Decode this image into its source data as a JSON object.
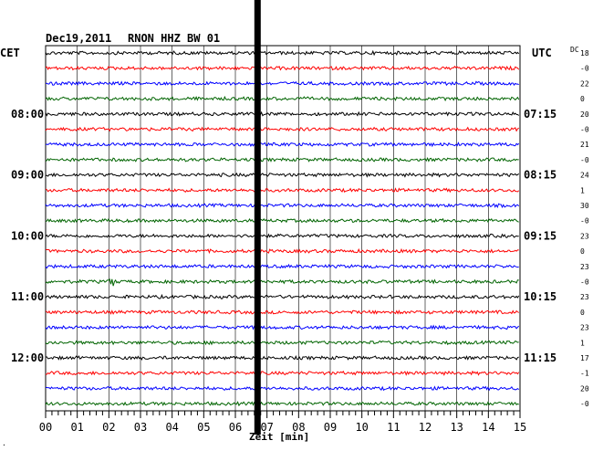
{
  "header": {
    "date": "Dec19,2011",
    "station": "RNON HHZ BW 01",
    "left_zone": "CET",
    "right_zone": "UTC",
    "dc_label": "DC"
  },
  "footer": {
    "xlabel": "Zeit [min]",
    "corner_mark": "."
  },
  "chart_data": {
    "type": "line",
    "title": "Dec19,2011 RNON HHZ BW 01",
    "xlabel": "Zeit [min]",
    "x_range": [
      0,
      15
    ],
    "x_ticks": [
      "00",
      "01",
      "02",
      "03",
      "04",
      "05",
      "06",
      "07",
      "08",
      "09",
      "10",
      "11",
      "12",
      "13",
      "14",
      "15"
    ],
    "grid": true,
    "trace_colors": [
      "#000000",
      "#ff0000",
      "#0000ff",
      "#006400"
    ],
    "left_hour_labels": [
      {
        "trace": 4,
        "label": "08:00"
      },
      {
        "trace": 8,
        "label": "09:00"
      },
      {
        "trace": 12,
        "label": "10:00"
      },
      {
        "trace": 16,
        "label": "11:00"
      },
      {
        "trace": 20,
        "label": "12:00"
      }
    ],
    "right_hour_labels": [
      {
        "trace": 4,
        "label": "07:15"
      },
      {
        "trace": 8,
        "label": "08:15"
      },
      {
        "trace": 12,
        "label": "09:15"
      },
      {
        "trace": 16,
        "label": "10:15"
      },
      {
        "trace": 20,
        "label": "11:15"
      }
    ],
    "dc_offsets": [
      "18",
      "-0",
      "22",
      "0",
      "20",
      "-0",
      "21",
      "-0",
      "24",
      "1",
      "30",
      "-0",
      "23",
      "0",
      "23",
      "-0",
      "23",
      "0",
      "23",
      "1",
      "17",
      "-1",
      "20",
      "-0"
    ],
    "trace_count": 24,
    "event_markers": [
      {
        "trace": 15,
        "minute": 2.1,
        "label": ""
      }
    ],
    "vertical_marker_minute": 6.7
  }
}
